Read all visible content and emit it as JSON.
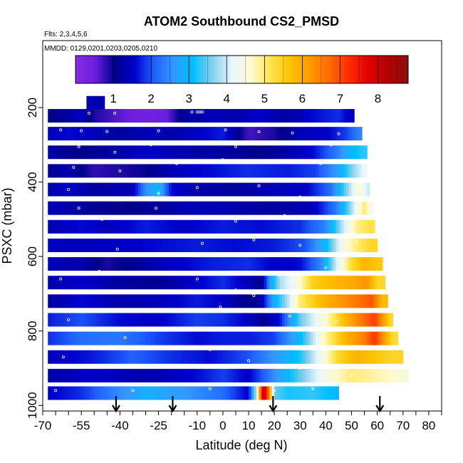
{
  "chart_data": {
    "type": "heatmap",
    "title": "ATOM2 Southbound CS2_PMSD",
    "subtitle_flights": "Flts: 2,3,4,5,6",
    "subtitle_dates": "MMDD: 0129,0201,0203,0205,0210",
    "xlabel": "Latitude (deg N)",
    "ylabel": "PSXC (mbar)",
    "xlim": [
      -70,
      85
    ],
    "ylim": [
      1015,
      20
    ],
    "x_tick_labels": [
      "-70",
      "-55",
      "-40",
      "-25",
      "-10",
      "0",
      "10",
      "20",
      "30",
      "40",
      "50",
      "60",
      "70",
      "80"
    ],
    "x_tick_values": [
      -70,
      -55,
      -40,
      -25,
      -10,
      0,
      10,
      20,
      30,
      40,
      50,
      60,
      70,
      80
    ],
    "x_minor_ticks": [
      -65,
      -60,
      -50,
      -45,
      -35,
      -30,
      -20,
      -15,
      -5,
      5,
      15,
      25,
      35,
      45,
      55,
      65,
      75,
      85
    ],
    "y_ticks": [
      200,
      400,
      600,
      800,
      1000
    ],
    "colorbar": {
      "range": [
        0,
        8.8
      ],
      "tick_values": [
        1,
        2,
        3,
        4,
        5,
        6,
        7,
        8
      ],
      "tick_labels": [
        "1",
        "2",
        "3",
        "4",
        "5",
        "6",
        "7",
        "8"
      ],
      "colors": [
        "#8a2be2",
        "#6a1fe0",
        "#00008b",
        "#0000cd",
        "#1f5fff",
        "#3399ff",
        "#00bfff",
        "#87ceeb",
        "#e8f8ff",
        "#fffacd",
        "#ffe34a",
        "#ffc200",
        "#ff9a00",
        "#ff6a00",
        "#ff2a00",
        "#e00000",
        "#b00000",
        "#8b1010"
      ]
    },
    "layers": [
      {
        "p": 967,
        "lat_min": -68,
        "lat_max": 45,
        "segments": [
          [
            -68,
            1.5
          ],
          [
            -55,
            1.8
          ],
          [
            -42,
            2.4
          ],
          [
            -30,
            2.9
          ],
          [
            -15,
            2.6
          ],
          [
            0,
            2.2
          ],
          [
            10,
            1.5
          ],
          [
            13,
            4
          ],
          [
            15,
            7.3
          ],
          [
            16,
            8.2
          ],
          [
            18,
            6.5
          ],
          [
            20,
            3.5
          ],
          [
            25,
            3.2
          ],
          [
            35,
            3.3
          ],
          [
            44,
            3.0
          ]
        ]
      },
      {
        "p": 920,
        "lat_min": -68,
        "lat_max": 72,
        "segments": [
          [
            -68,
            1.3
          ],
          [
            -50,
            1.5
          ],
          [
            -30,
            1.3
          ],
          [
            -10,
            1.6
          ],
          [
            0,
            1.9
          ],
          [
            10,
            1.5
          ],
          [
            20,
            2.5
          ],
          [
            30,
            3.5
          ],
          [
            40,
            4.4
          ],
          [
            50,
            5.0
          ],
          [
            60,
            4.8
          ],
          [
            70,
            4.5
          ]
        ]
      },
      {
        "p": 870,
        "lat_min": -68,
        "lat_max": 70,
        "segments": [
          [
            -68,
            1.4
          ],
          [
            -50,
            1.7
          ],
          [
            -35,
            2.1
          ],
          [
            -20,
            1.8
          ],
          [
            -5,
            1.6
          ],
          [
            10,
            2.0
          ],
          [
            20,
            2.6
          ],
          [
            30,
            3.2
          ],
          [
            38,
            4.3
          ],
          [
            45,
            5.4
          ],
          [
            52,
            5.9
          ],
          [
            58,
            5.7
          ],
          [
            66,
            5.4
          ]
        ]
      },
      {
        "p": 820,
        "lat_min": -68,
        "lat_max": 68,
        "segments": [
          [
            -68,
            1.8
          ],
          [
            -55,
            2.2
          ],
          [
            -40,
            2.3
          ],
          [
            -25,
            1.9
          ],
          [
            -10,
            1.6
          ],
          [
            0,
            1.7
          ],
          [
            10,
            1.7
          ],
          [
            20,
            1.9
          ],
          [
            30,
            3.0
          ],
          [
            40,
            4.8
          ],
          [
            48,
            5.9
          ],
          [
            55,
            6.5
          ],
          [
            59,
            7.2
          ],
          [
            63,
            6.1
          ],
          [
            66,
            5.3
          ]
        ]
      },
      {
        "p": 770,
        "lat_min": -68,
        "lat_max": 66,
        "segments": [
          [
            -68,
            1.7
          ],
          [
            -55,
            2.0
          ],
          [
            -40,
            1.6
          ],
          [
            -25,
            1.5
          ],
          [
            -10,
            1.9
          ],
          [
            0,
            1.8
          ],
          [
            10,
            1.5
          ],
          [
            15,
            1.1
          ],
          [
            22,
            1.6
          ],
          [
            30,
            3.5
          ],
          [
            40,
            4.6
          ],
          [
            48,
            5.9
          ],
          [
            55,
            6.7
          ],
          [
            59,
            7.1
          ],
          [
            62,
            6.3
          ],
          [
            65,
            5.4
          ]
        ]
      },
      {
        "p": 720,
        "lat_min": -68,
        "lat_max": 64,
        "segments": [
          [
            -68,
            1.2
          ],
          [
            -55,
            1.6
          ],
          [
            -40,
            1.3
          ],
          [
            -25,
            1.4
          ],
          [
            -10,
            1.7
          ],
          [
            0,
            1.5
          ],
          [
            10,
            1.0
          ],
          [
            15,
            1.3
          ],
          [
            20,
            2.9
          ],
          [
            25,
            3.8
          ],
          [
            30,
            5.0
          ],
          [
            38,
            5.8
          ],
          [
            45,
            6.2
          ],
          [
            52,
            6.6
          ],
          [
            58,
            6.9
          ],
          [
            62,
            5.8
          ]
        ]
      },
      {
        "p": 670,
        "lat_min": -68,
        "lat_max": 63,
        "segments": [
          [
            -68,
            1.3
          ],
          [
            -55,
            1.5
          ],
          [
            -40,
            1.2
          ],
          [
            -25,
            1.1
          ],
          [
            -10,
            1.5
          ],
          [
            0,
            1.8
          ],
          [
            10,
            1.4
          ],
          [
            15,
            1.0
          ],
          [
            18,
            2.5
          ],
          [
            22,
            3.8
          ],
          [
            28,
            4.3
          ],
          [
            35,
            5.5
          ],
          [
            42,
            5.8
          ],
          [
            50,
            6.0
          ],
          [
            56,
            6.3
          ],
          [
            60,
            5.4
          ]
        ]
      },
      {
        "p": 620,
        "lat_min": -68,
        "lat_max": 62,
        "segments": [
          [
            -68,
            1.4
          ],
          [
            -55,
            1.3
          ],
          [
            -45,
            0.9
          ],
          [
            -35,
            1.1
          ],
          [
            -20,
            1.5
          ],
          [
            -5,
            1.7
          ],
          [
            10,
            1.8
          ],
          [
            20,
            1.5
          ],
          [
            30,
            1.6
          ],
          [
            38,
            2.4
          ],
          [
            44,
            4.0
          ],
          [
            50,
            5.3
          ],
          [
            55,
            5.9
          ],
          [
            60,
            5.6
          ]
        ]
      },
      {
        "p": 570,
        "lat_min": -68,
        "lat_max": 60,
        "segments": [
          [
            -68,
            1.5
          ],
          [
            -55,
            1.4
          ],
          [
            -40,
            1.5
          ],
          [
            -25,
            1.6
          ],
          [
            -10,
            1.7
          ],
          [
            5,
            1.6
          ],
          [
            20,
            1.7
          ],
          [
            32,
            2.0
          ],
          [
            40,
            3.0
          ],
          [
            46,
            4.3
          ],
          [
            52,
            5.0
          ],
          [
            58,
            5.4
          ]
        ]
      },
      {
        "p": 520,
        "lat_min": -68,
        "lat_max": 59,
        "segments": [
          [
            -68,
            1.3
          ],
          [
            -55,
            1.6
          ],
          [
            -45,
            1.4
          ],
          [
            -30,
            1.7
          ],
          [
            -15,
            1.5
          ],
          [
            0,
            1.7
          ],
          [
            15,
            1.6
          ],
          [
            30,
            1.8
          ],
          [
            40,
            2.4
          ],
          [
            46,
            3.8
          ],
          [
            52,
            4.9
          ],
          [
            57,
            5.2
          ]
        ]
      },
      {
        "p": 470,
        "lat_min": -68,
        "lat_max": 58,
        "segments": [
          [
            -68,
            1.4
          ],
          [
            -55,
            1.2
          ],
          [
            -40,
            1.0
          ],
          [
            -25,
            1.2
          ],
          [
            -10,
            1.4
          ],
          [
            5,
            1.3
          ],
          [
            20,
            1.2
          ],
          [
            35,
            1.4
          ],
          [
            44,
            2.3
          ],
          [
            50,
            3.8
          ],
          [
            55,
            5.0
          ],
          [
            57,
            4.5
          ]
        ]
      },
      {
        "p": 420,
        "lat_min": -68,
        "lat_max": 57,
        "segments": [
          [
            -68,
            1.3
          ],
          [
            -60,
            1.5
          ],
          [
            -50,
            1.2
          ],
          [
            -35,
            1.4
          ],
          [
            -30,
            2.5
          ],
          [
            -25,
            3.0
          ],
          [
            -20,
            1.6
          ],
          [
            -10,
            1.3
          ],
          [
            5,
            1.2
          ],
          [
            20,
            1.4
          ],
          [
            32,
            1.5
          ],
          [
            42,
            2.2
          ],
          [
            48,
            3.6
          ],
          [
            53,
            4.6
          ],
          [
            56,
            4.0
          ]
        ]
      },
      {
        "p": 370,
        "lat_min": -68,
        "lat_max": 56,
        "segments": [
          [
            -68,
            1.1
          ],
          [
            -60,
            1.3
          ],
          [
            -50,
            0.8
          ],
          [
            -40,
            0.9
          ],
          [
            -30,
            1.0
          ],
          [
            -20,
            1.4
          ],
          [
            -5,
            1.6
          ],
          [
            10,
            1.8
          ],
          [
            25,
            1.7
          ],
          [
            36,
            1.9
          ],
          [
            44,
            2.6
          ],
          [
            50,
            3.6
          ],
          [
            55,
            4.2
          ]
        ]
      },
      {
        "p": 320,
        "lat_min": -68,
        "lat_max": 56,
        "segments": [
          [
            -68,
            1.3
          ],
          [
            -60,
            1.0
          ],
          [
            -50,
            1.1
          ],
          [
            -40,
            1.3
          ],
          [
            -30,
            1.5
          ],
          [
            -15,
            1.3
          ],
          [
            0,
            1.2
          ],
          [
            15,
            1.0
          ],
          [
            25,
            1.3
          ],
          [
            35,
            1.6
          ],
          [
            44,
            2.3
          ],
          [
            50,
            3.0
          ],
          [
            55,
            3.3
          ]
        ]
      },
      {
        "p": 270,
        "lat_min": -68,
        "lat_max": 54,
        "segments": [
          [
            -68,
            1.4
          ],
          [
            -60,
            1.6
          ],
          [
            -50,
            1.4
          ],
          [
            -40,
            1.2
          ],
          [
            -30,
            1.4
          ],
          [
            -20,
            1.3
          ],
          [
            -10,
            1.5
          ],
          [
            0,
            1.7
          ],
          [
            10,
            0.7
          ],
          [
            20,
            0.9
          ],
          [
            30,
            1.4
          ],
          [
            40,
            1.5
          ],
          [
            48,
            1.9
          ],
          [
            53,
            2.4
          ]
        ]
      },
      {
        "p": 222,
        "lat_min": -68,
        "lat_max": 51,
        "segments": [
          [
            -68,
            1.0
          ],
          [
            -60,
            1.2
          ],
          [
            -55,
            1.5
          ],
          [
            -50,
            0.9
          ],
          [
            -40,
            0.6
          ],
          [
            -30,
            0.4
          ],
          [
            -22,
            0.5
          ],
          [
            -15,
            1.2
          ],
          [
            -5,
            1.4
          ],
          [
            5,
            1.3
          ],
          [
            15,
            1.5
          ],
          [
            25,
            1.2
          ],
          [
            35,
            1.6
          ],
          [
            45,
            1.8
          ],
          [
            50,
            1.4
          ]
        ]
      },
      {
        "p": 187,
        "lat_min": -53,
        "lat_max": -46,
        "segments": [
          [
            -53,
            1.3
          ],
          [
            -46,
            1.3
          ]
        ]
      }
    ],
    "sample_points": [
      [
        -65,
        960
      ],
      [
        -35,
        960
      ],
      [
        -5,
        955
      ],
      [
        20,
        960
      ],
      [
        35,
        955
      ],
      [
        55,
        960
      ],
      [
        -62,
        870
      ],
      [
        -38,
        818
      ],
      [
        -5,
        850
      ],
      [
        10,
        880
      ],
      [
        30,
        900
      ],
      [
        50,
        920
      ],
      [
        -60,
        770
      ],
      [
        -45,
        745
      ],
      [
        -1,
        735
      ],
      [
        12,
        705
      ],
      [
        26,
        760
      ],
      [
        44,
        775
      ],
      [
        -63,
        660
      ],
      [
        -48,
        640
      ],
      [
        -10,
        660
      ],
      [
        5,
        690
      ],
      [
        22,
        650
      ],
      [
        40,
        630
      ],
      [
        -57,
        595
      ],
      [
        -41,
        580
      ],
      [
        -8,
        565
      ],
      [
        12,
        555
      ],
      [
        30,
        570
      ],
      [
        52,
        560
      ],
      [
        -56,
        470
      ],
      [
        -47,
        500
      ],
      [
        -26,
        470
      ],
      [
        -15,
        495
      ],
      [
        5,
        505
      ],
      [
        24,
        490
      ],
      [
        -60,
        420
      ],
      [
        -46,
        395
      ],
      [
        -25,
        430
      ],
      [
        -10,
        415
      ],
      [
        14,
        410
      ],
      [
        30,
        440
      ],
      [
        -58,
        360
      ],
      [
        -40,
        370
      ],
      [
        -18,
        350
      ],
      [
        0,
        340
      ],
      [
        15,
        345
      ],
      [
        38,
        350
      ],
      [
        -56,
        305
      ],
      [
        -42,
        320
      ],
      [
        -28,
        300
      ],
      [
        -10,
        295
      ],
      [
        5,
        305
      ],
      [
        42,
        300
      ],
      [
        -63,
        260
      ],
      [
        -55,
        262
      ],
      [
        -45,
        264
      ],
      [
        -25,
        262
      ],
      [
        1,
        260
      ],
      [
        14,
        265
      ],
      [
        27,
        268
      ],
      [
        45,
        270
      ],
      [
        -52,
        215
      ],
      [
        -42,
        215
      ],
      [
        -12,
        212
      ],
      [
        -10,
        212
      ],
      [
        -9,
        212
      ],
      [
        -8,
        212
      ]
    ],
    "arrows_lat": [
      -41.5,
      -19.5,
      19.5,
      61
    ]
  }
}
